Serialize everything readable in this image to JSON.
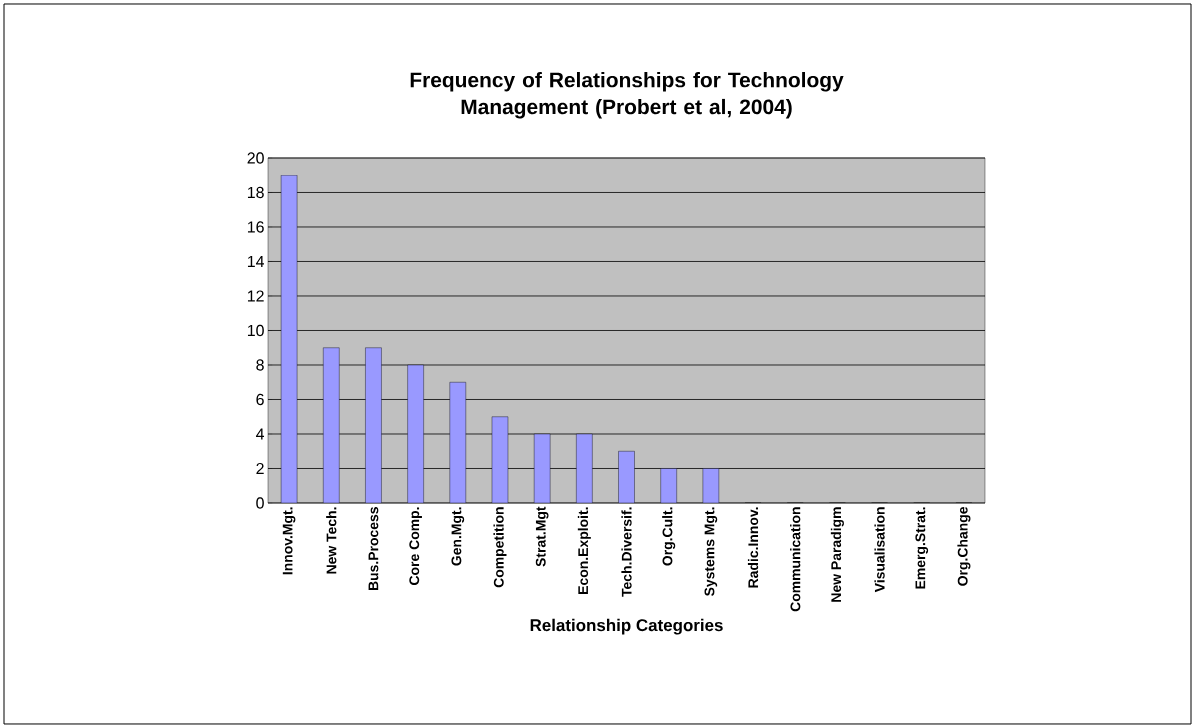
{
  "chart_data": {
    "type": "bar",
    "title": "Frequency of Relationships for Technology Management (Probert et al, 2004)",
    "xlabel": "Relationship Categories",
    "categories": [
      "Innov.Mgt.",
      "New Tech.",
      "Bus.Process",
      "Core Comp.",
      "Gen.Mgt.",
      "Competition",
      "Strat.Mgt",
      "Econ.Exploit.",
      "Tech.Diversif.",
      "Org.Cult.",
      "Systems Mgt.",
      "Radic.Innov.",
      "Communication",
      "New Paradigm",
      "Visualisation",
      "Emerg.Strat.",
      "Org.Change"
    ],
    "values": [
      19,
      9,
      9,
      8,
      7,
      5,
      4,
      4,
      3,
      2,
      2,
      0,
      0,
      0,
      0,
      0,
      0
    ],
    "color": "#9999ff",
    "ylim": [
      0,
      20
    ],
    "yticks": [
      0,
      2,
      4,
      6,
      8,
      10,
      12,
      14,
      16,
      18,
      20
    ],
    "grid": "y"
  }
}
